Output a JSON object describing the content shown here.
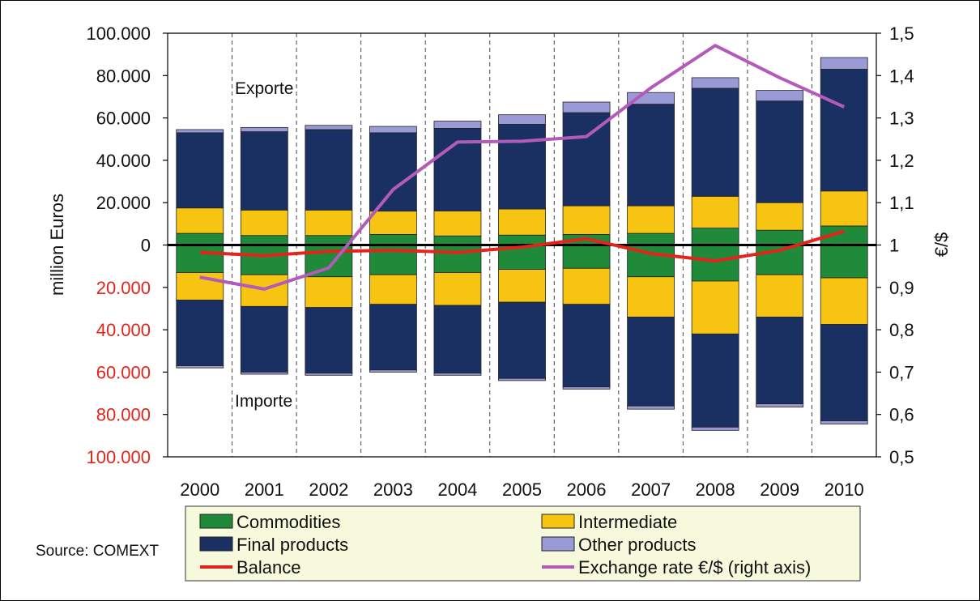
{
  "chart_data": {
    "type": "bar",
    "stacked": true,
    "categories": [
      "2000",
      "2001",
      "2002",
      "2003",
      "2004",
      "2005",
      "2006",
      "2007",
      "2008",
      "2009",
      "2010"
    ],
    "ylabel": "million Euros",
    "y2label": "€/$",
    "ylim": [
      -100000,
      100000
    ],
    "y2lim": [
      0.5,
      1.5
    ],
    "y_ticks": [
      "100.000",
      "80.000",
      "60.000",
      "40.000",
      "20.000",
      "0",
      "20.000",
      "40.000",
      "60.000",
      "80.000",
      "100.000"
    ],
    "y2_ticks": [
      "1,5",
      "1,4",
      "1,3",
      "1,2",
      "1,1",
      "1",
      "0,9",
      "0,8",
      "0,7",
      "0,6",
      "0,5"
    ],
    "grid": "vertical-dashed",
    "annotations": {
      "exports": "Exporte",
      "imports": "Importe"
    },
    "source": "Source: COMEXT",
    "exports": [
      {
        "name": "Commodities",
        "values": [
          5500,
          4500,
          4500,
          5000,
          4300,
          4700,
          5000,
          5500,
          8000,
          7000,
          9000
        ]
      },
      {
        "name": "Intermediate",
        "values": [
          12000,
          12000,
          12000,
          11000,
          11800,
          12300,
          13500,
          13000,
          15000,
          13000,
          16500
        ]
      },
      {
        "name": "Final products",
        "values": [
          35500,
          37000,
          38000,
          37000,
          39000,
          40000,
          44000,
          48000,
          51000,
          48000,
          57500
        ]
      },
      {
        "name": "Other products",
        "values": [
          1500,
          2000,
          2000,
          3000,
          3400,
          4500,
          5000,
          5500,
          5000,
          5000,
          5500
        ]
      }
    ],
    "imports": [
      {
        "name": "Commodities",
        "values": [
          13000,
          14000,
          15000,
          14000,
          13000,
          11500,
          11000,
          15000,
          17000,
          14000,
          15500
        ]
      },
      {
        "name": "Intermediate",
        "values": [
          13000,
          15000,
          14500,
          14000,
          15500,
          15500,
          17000,
          19000,
          25000,
          20000,
          22000
        ]
      },
      {
        "name": "Final products",
        "values": [
          31000,
          31000,
          31000,
          31000,
          32000,
          36000,
          39000,
          42000,
          44000,
          41000,
          45500
        ]
      },
      {
        "name": "Other products",
        "values": [
          1000,
          1000,
          1000,
          1000,
          1000,
          1000,
          1000,
          1500,
          1500,
          1500,
          1500
        ]
      }
    ],
    "balance": {
      "name": "Balance",
      "values": [
        -3500,
        -5000,
        -3000,
        -2500,
        -3500,
        -1000,
        3000,
        -4000,
        -7500,
        -2500,
        6500
      ]
    },
    "exchange_rate": {
      "name": "Exchange rate €/$ (right axis)",
      "values": [
        0.924,
        0.896,
        0.946,
        1.131,
        1.243,
        1.245,
        1.256,
        1.371,
        1.471,
        1.395,
        1.326
      ]
    },
    "legend": {
      "placement": "bottom",
      "items": [
        {
          "label": "Commodities",
          "kind": "box",
          "color": "#1e8a3a"
        },
        {
          "label": "Intermediate",
          "kind": "box",
          "color": "#f7c411"
        },
        {
          "label": "Final products",
          "kind": "box",
          "color": "#1b3062"
        },
        {
          "label": "Other products",
          "kind": "box",
          "color": "#9a9ad6"
        },
        {
          "label": "Balance",
          "kind": "line",
          "color": "#e3241b"
        },
        {
          "label": "Exchange rate €/$ (right axis)",
          "kind": "line",
          "color": "#b35bb8"
        }
      ]
    },
    "colors": {
      "Commodities": "#1e8a3a",
      "Intermediate": "#f7c411",
      "Final products": "#1b3062",
      "Other products": "#9a9ad6",
      "Balance": "#e3241b",
      "Exchange rate": "#b35bb8",
      "legend_bg": "#f7f9dc"
    }
  }
}
